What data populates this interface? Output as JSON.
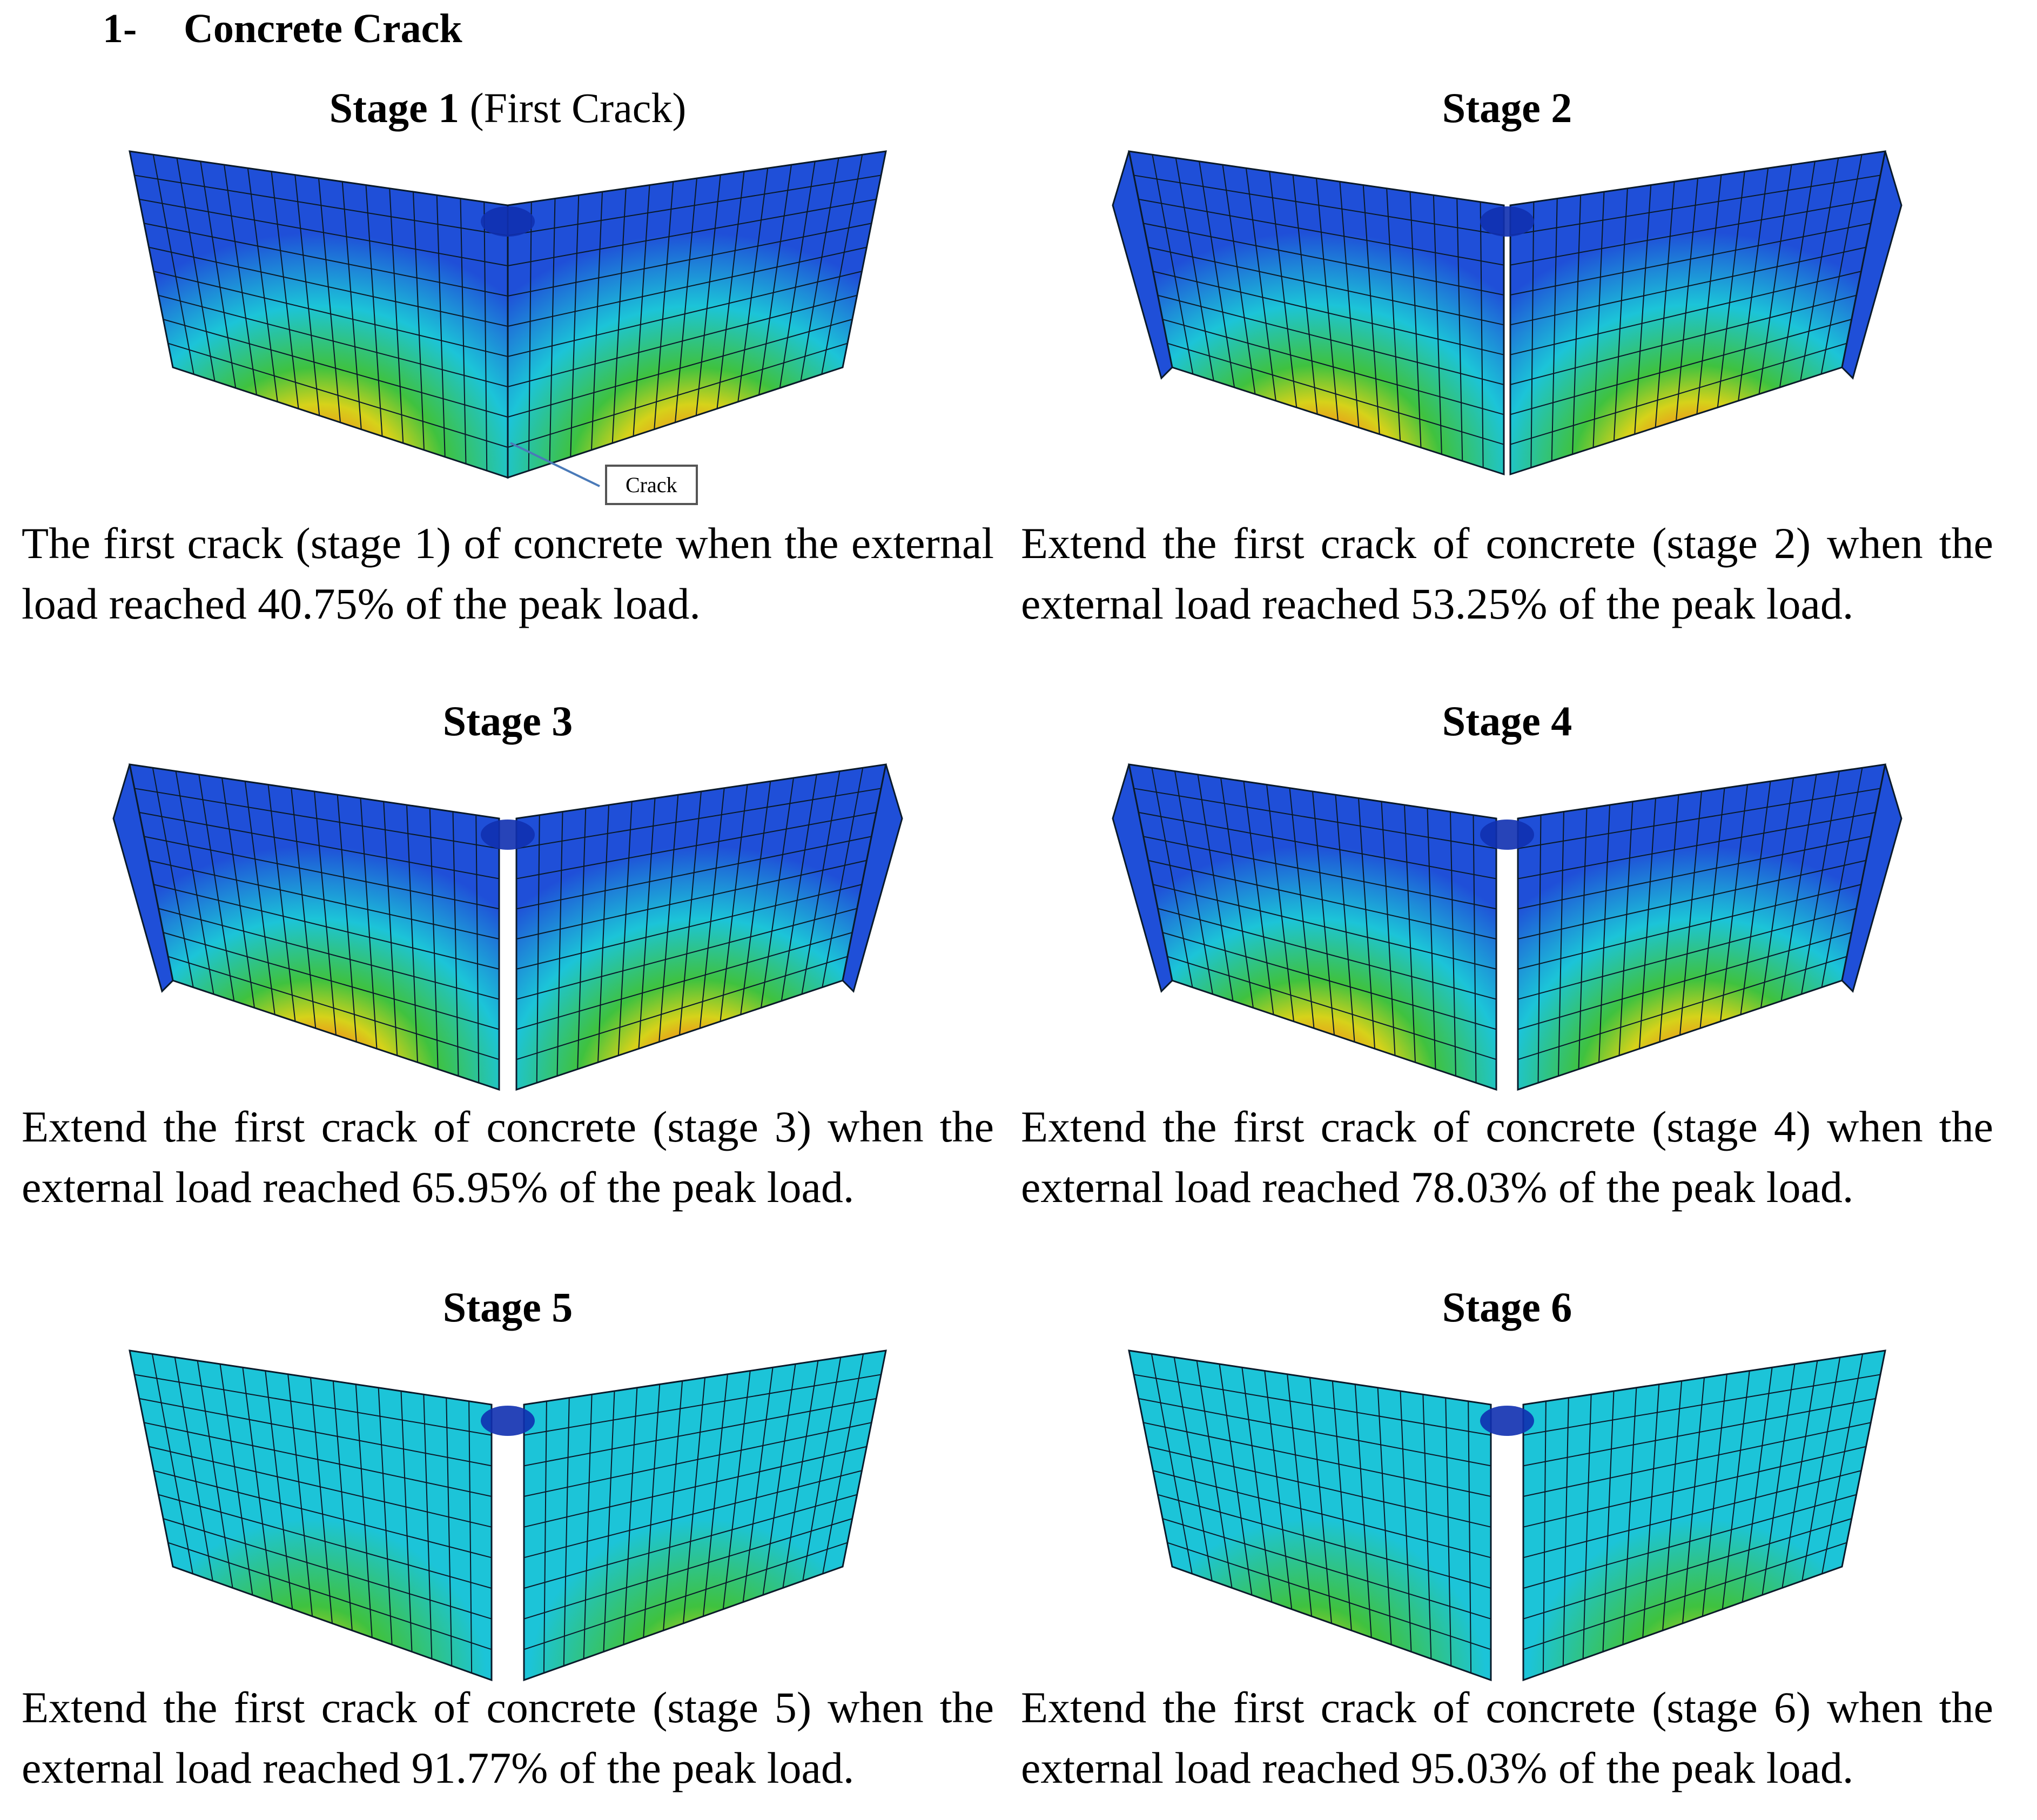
{
  "heading": {
    "number": "1-",
    "text": "Concrete Crack"
  },
  "crack_label": "Crack",
  "colors": {
    "blue": "#1f4fd8",
    "cyan": "#1cc4d8",
    "green": "#3fc23f",
    "yellow": "#d6d21a",
    "orange": "#f08a1a",
    "red": "#e0281a",
    "mesh": "#0a1a2a"
  },
  "stages": [
    {
      "title_bold": "Stage 1",
      "title_rest": " (First Crack)",
      "caption": "The first crack (stage 1) of concrete when the external load reached 40.75% of the peak load."
    },
    {
      "title_bold": "Stage 2",
      "title_rest": "",
      "caption": "Extend the first crack of concrete (stage 2) when the external load reached 53.25% of the peak load."
    },
    {
      "title_bold": "Stage 3",
      "title_rest": "",
      "caption": "Extend the first crack of concrete (stage 3) when the external load reached 65.95% of the peak load."
    },
    {
      "title_bold": "Stage 4",
      "title_rest": "",
      "caption": "Extend the first crack of concrete (stage 4) when the external load reached 78.03% of the peak load."
    },
    {
      "title_bold": "Stage 5",
      "title_rest": "",
      "caption": "Extend the first crack of concrete (stage 5) when the external load reached 91.77% of the peak load."
    },
    {
      "title_bold": "Stage 6",
      "title_rest": "",
      "caption": "Extend the first crack of concrete (stage 6) when the external load reached 95.03% of the peak load."
    }
  ]
}
